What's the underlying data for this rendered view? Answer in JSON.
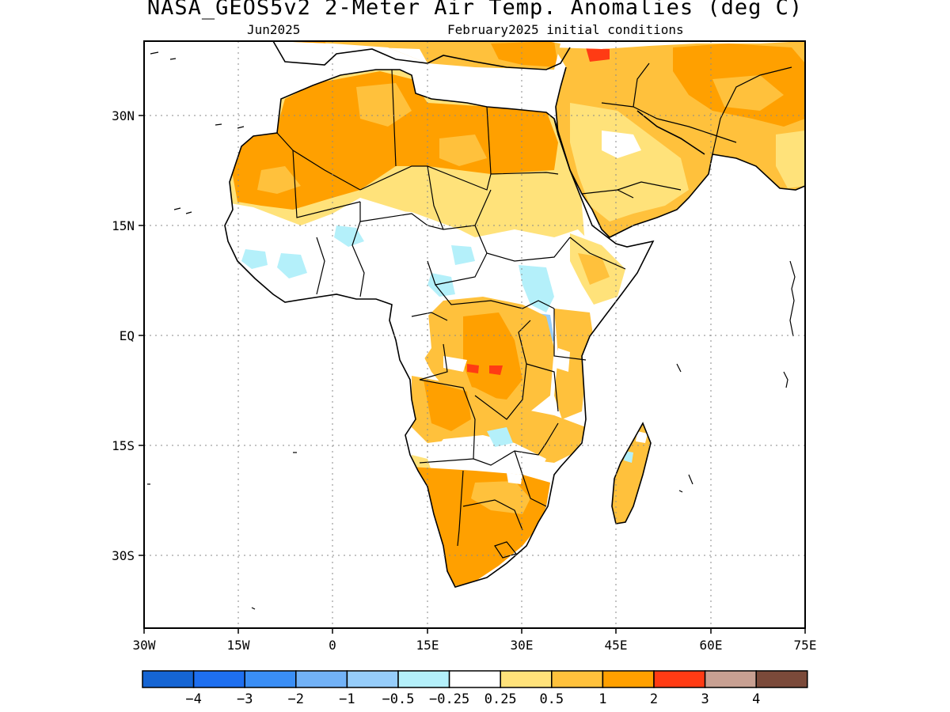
{
  "title": "NASA_GEOS5v2 2-Meter Air Temp. Anomalies (deg C)",
  "subtitle_left": "Jun2025",
  "subtitle_right": "February2025 initial conditions",
  "map": {
    "lon_range": [
      -30,
      75
    ],
    "lat_range": [
      -40,
      40
    ],
    "x_ticks": [
      "30W",
      "15W",
      "0",
      "15E",
      "30E",
      "45E",
      "60E",
      "75E"
    ],
    "y_ticks": [
      "30N",
      "15N",
      "EQ",
      "15S",
      "30S"
    ],
    "grid": "dotted"
  },
  "colorbar": {
    "colors": [
      "#1565d4",
      "#1e6ff0",
      "#3a8ef5",
      "#72b2f7",
      "#96cdfa",
      "#b4f0fa",
      "#ffffff",
      "#ffe27a",
      "#ffc13c",
      "#ffa000",
      "#ff3b14",
      "#c8a092",
      "#7b4a3a"
    ],
    "labels": [
      "−4",
      "−3",
      "−2",
      "−1",
      "−0.5",
      "−0.25",
      "0.25",
      "0.5",
      "1",
      "2",
      "3",
      "4"
    ]
  },
  "icons": {
    "map": "africa-map",
    "colorbar": "legend-colorbar"
  }
}
